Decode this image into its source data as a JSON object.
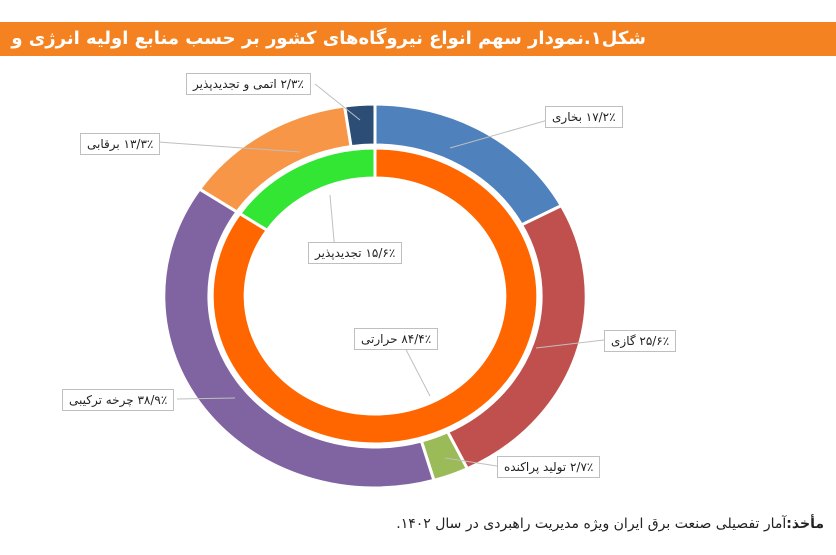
{
  "title": "شکل۱.نمودار سهم انواع نیروگاه‌های کشور بر حسب منابع اولیه انرژی و تکنولوژی",
  "chart_data": {
    "type": "donut",
    "title": "شکل۱.نمودار سهم انواع نیروگاه‌های کشور بر حسب منابع اولیه انرژی و تکنولوژی",
    "outer_ring": [
      {
        "name": "بخاری",
        "value": 17.2,
        "label": "۱۷/۲٪ بخاری",
        "color": "#4f81bd"
      },
      {
        "name": "گازی",
        "value": 25.6,
        "label": "۲۵/۶٪ گازی",
        "color": "#c0504d"
      },
      {
        "name": "تولید پراکنده",
        "value": 2.7,
        "label": "۲/۷٪ تولید پراکنده",
        "color": "#9bbb59"
      },
      {
        "name": "چرخه ترکیبی",
        "value": 38.9,
        "label": "۳۸/۹٪ چرخه ترکیبی",
        "color": "#8064a2"
      },
      {
        "name": "برقابی",
        "value": 13.3,
        "label": "۱۳/۳٪ برقابی",
        "color": "#f79646"
      },
      {
        "name": "اتمی و تجدیدپذیر",
        "value": 2.3,
        "label": "۲/۳٪ اتمی و تجدیدپذیر",
        "color": "#2c4d75"
      }
    ],
    "inner_ring": [
      {
        "name": "حرارتی",
        "value": 84.4,
        "label": "۸۴/۴٪ حرارتی",
        "color": "#ff6600"
      },
      {
        "name": "تجدیدپذیر",
        "value": 15.6,
        "label": "۱۵/۶٪ تجدیدپذیر",
        "color": "#33e633"
      }
    ]
  },
  "source": {
    "prefix": "مأخذ:",
    "text": "آمار تفصیلی صنعت برق ایران ویژه مدیریت راهبردی در سال ۱۴۰۲."
  }
}
